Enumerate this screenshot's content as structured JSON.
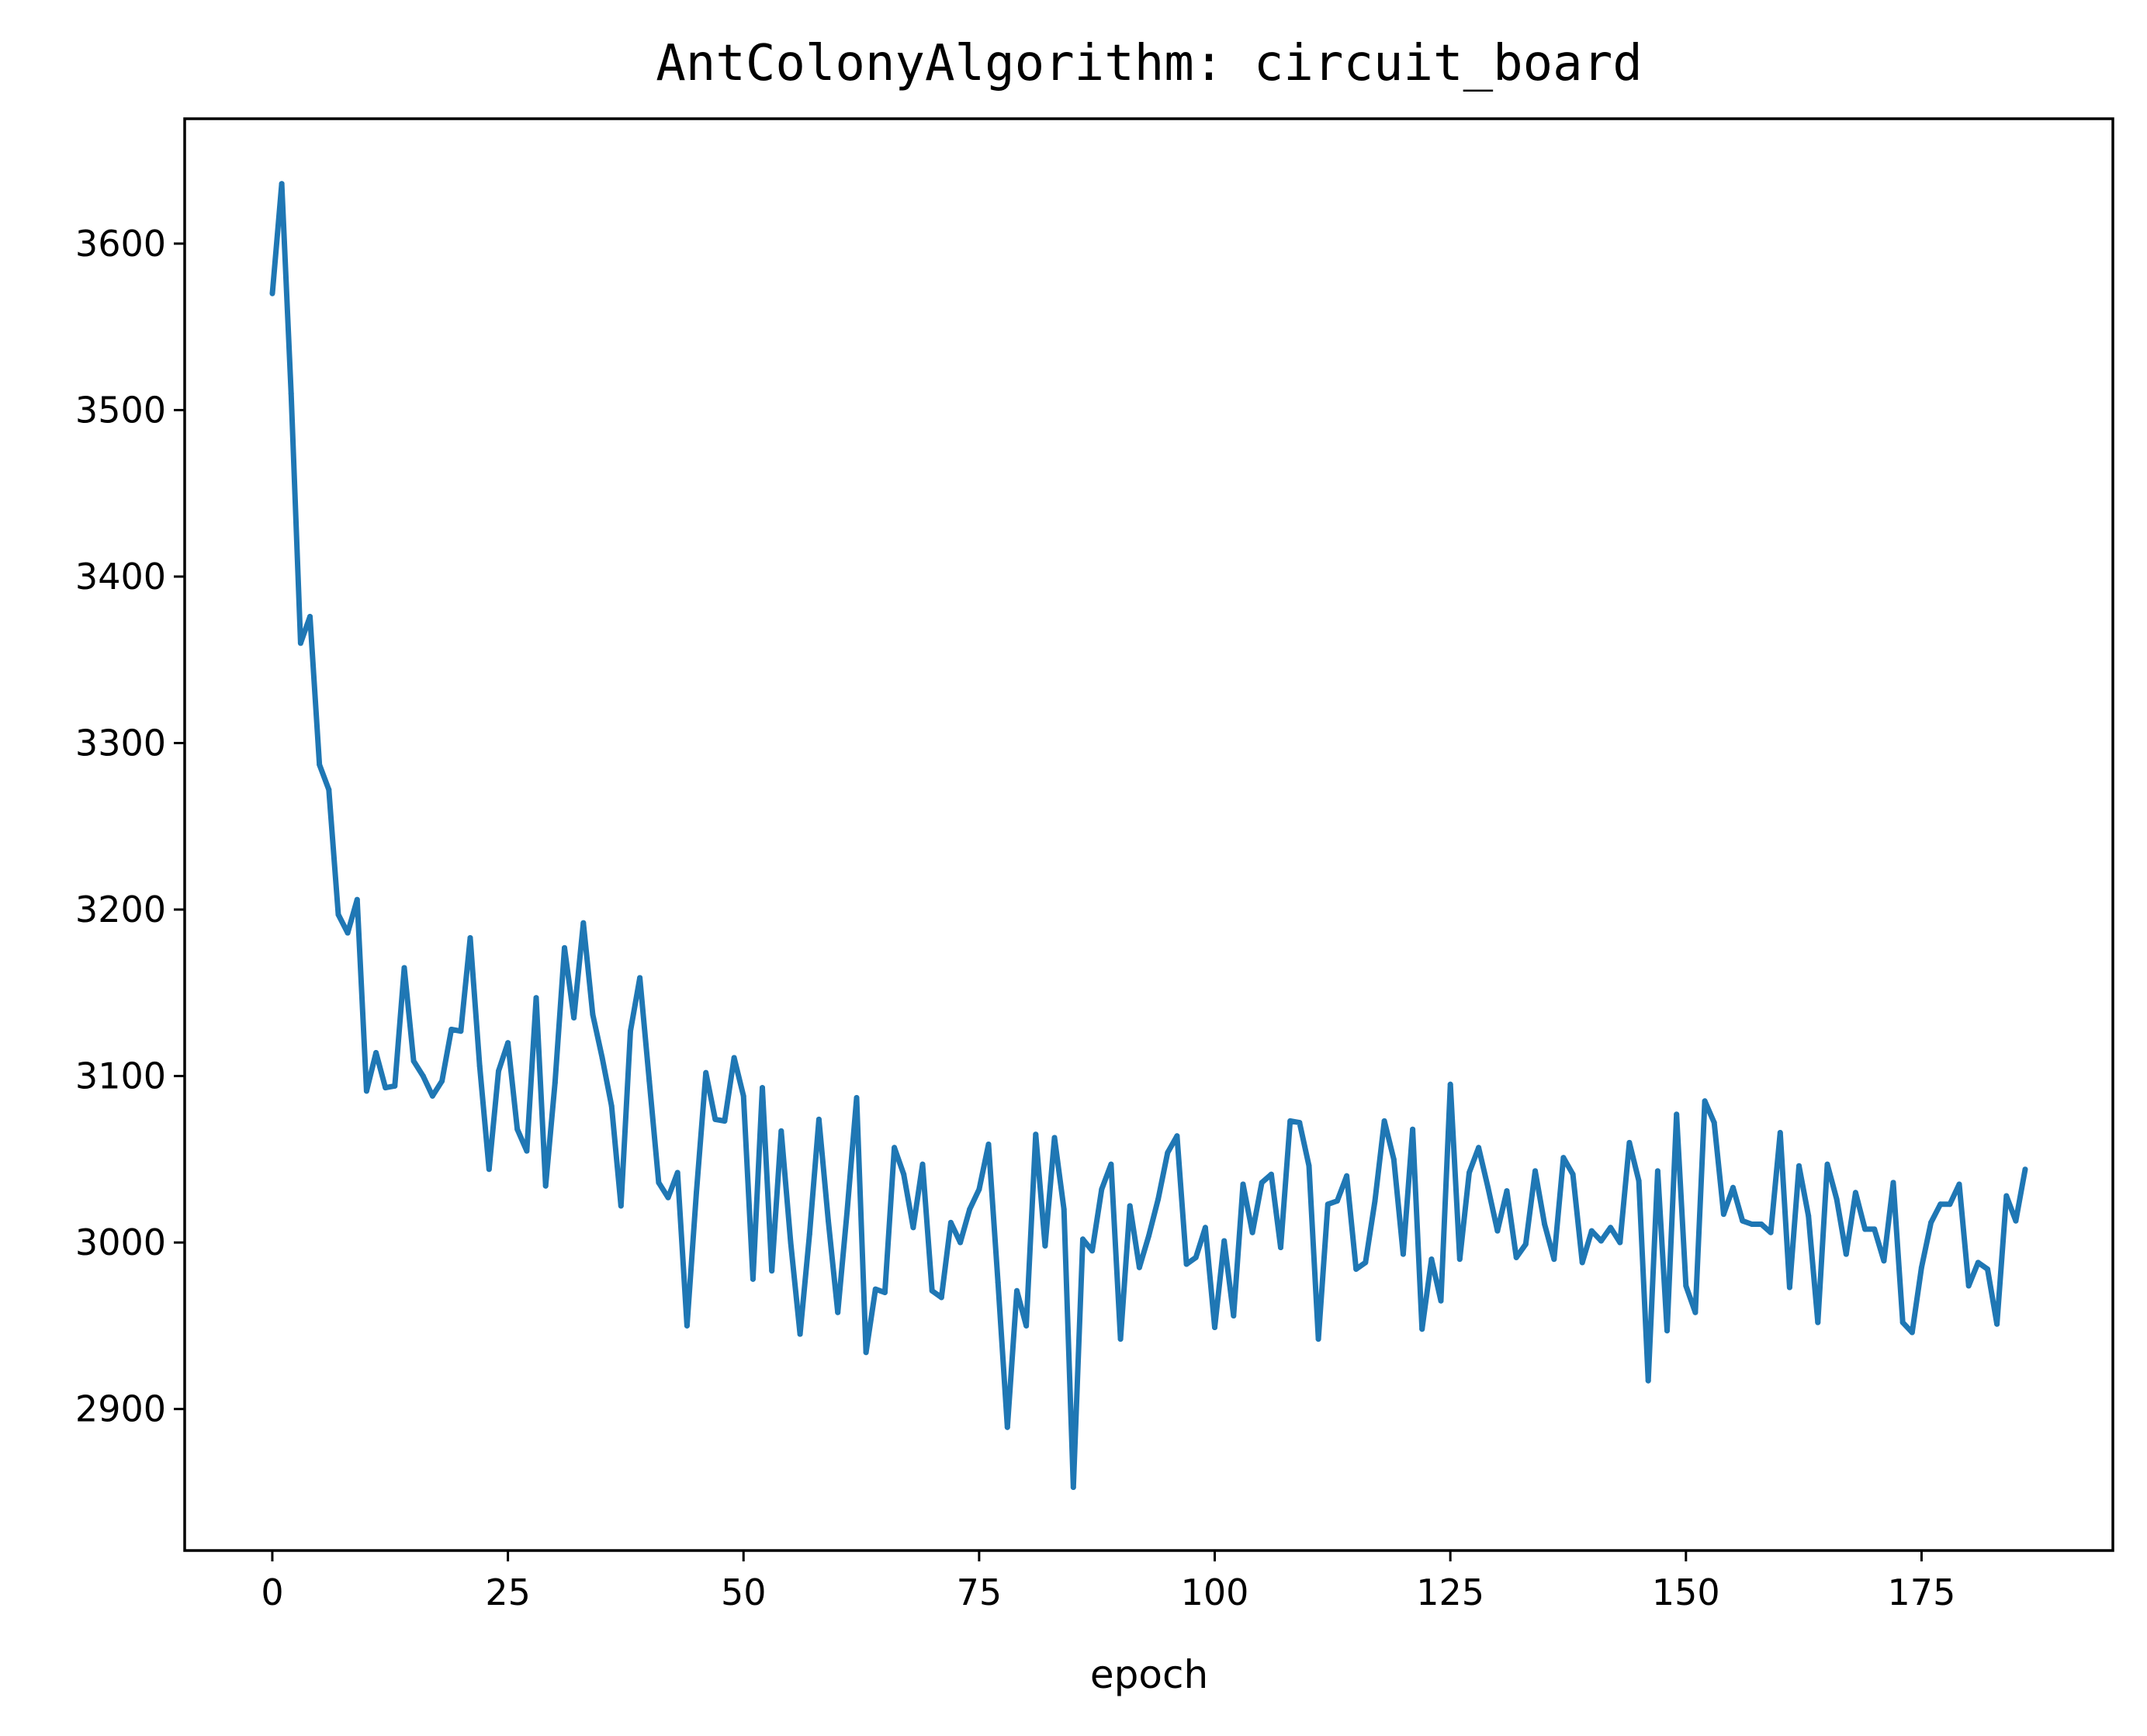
{
  "chart_data": {
    "type": "line",
    "title": "AntColonyAlgorithm: circuit_board",
    "xlabel": "epoch",
    "ylabel": "",
    "xlim": [
      -9.3,
      195.3
    ],
    "ylim": [
      2815,
      3675
    ],
    "grid": false,
    "line_color": "#1f77b4",
    "x_ticks": [
      0,
      25,
      50,
      75,
      100,
      125,
      150,
      175
    ],
    "y_ticks": [
      2900,
      3000,
      3100,
      3200,
      3300,
      3400,
      3500,
      3600
    ],
    "series": [
      {
        "name": "",
        "x": [
          0,
          1,
          2,
          3,
          4,
          5,
          6,
          7,
          8,
          9,
          10,
          11,
          12,
          13,
          14,
          15,
          16,
          17,
          18,
          19,
          20,
          21,
          22,
          23,
          24,
          25,
          26,
          27,
          28,
          29,
          30,
          31,
          32,
          33,
          34,
          35,
          36,
          37,
          38,
          39,
          40,
          41,
          42,
          43,
          44,
          45,
          46,
          47,
          48,
          49,
          50,
          51,
          52,
          53,
          54,
          55,
          56,
          57,
          58,
          59,
          60,
          61,
          62,
          63,
          64,
          65,
          66,
          67,
          68,
          69,
          70,
          71,
          72,
          73,
          74,
          75,
          76,
          77,
          78,
          79,
          80,
          81,
          82,
          83,
          84,
          85,
          86,
          87,
          88,
          89,
          90,
          91,
          92,
          93,
          94,
          95,
          96,
          97,
          98,
          99,
          100,
          101,
          102,
          103,
          104,
          105,
          106,
          107,
          108,
          109,
          110,
          111,
          112,
          113,
          114,
          115,
          116,
          117,
          118,
          119,
          120,
          121,
          122,
          123,
          124,
          125,
          126,
          127,
          128,
          129,
          130,
          131,
          132,
          133,
          134,
          135,
          136,
          137,
          138,
          139,
          140,
          141,
          142,
          143,
          144,
          145,
          146,
          147,
          148,
          149,
          150,
          151,
          152,
          153,
          154,
          155,
          156,
          157,
          158,
          159,
          160,
          161,
          162,
          163,
          164,
          165,
          166,
          167,
          168,
          169,
          170,
          171,
          172,
          173,
          174,
          175,
          176,
          177,
          178,
          179,
          180,
          181,
          182,
          183,
          184,
          185,
          186
        ],
        "y": [
          3570,
          3636,
          3510,
          3360,
          3376,
          3287,
          3272,
          3197,
          3186,
          3206,
          3091,
          3114,
          3093,
          3094,
          3165,
          3109,
          3100,
          3088,
          3097,
          3128,
          3127,
          3183,
          3106,
          3044,
          3103,
          3120,
          3068,
          3055,
          3147,
          3034,
          3096,
          3177,
          3135,
          3192,
          3137,
          3111,
          3082,
          3022,
          3127,
          3159,
          3097,
          3036,
          3027,
          3042,
          2950,
          3030,
          3102,
          3074,
          3073,
          3111,
          3088,
          2978,
          3093,
          2983,
          3067,
          3000,
          2945,
          3005,
          3074,
          3013,
          2958,
          3019,
          3087,
          2934,
          2972,
          2970,
          3057,
          3041,
          3009,
          3047,
          2971,
          2967,
          3012,
          3000,
          3020,
          3032,
          3059,
          2976,
          2889,
          2971,
          2950,
          3065,
          2998,
          3063,
          3020,
          2853,
          3002,
          2995,
          3032,
          3047,
          2942,
          3022,
          2985,
          3004,
          3026,
          3054,
          3064,
          2987,
          2991,
          3009,
          2949,
          3001,
          2956,
          3035,
          3006,
          3036,
          3041,
          2997,
          3073,
          3072,
          3046,
          2942,
          3023,
          3025,
          3040,
          2984,
          2988,
          3025,
          3073,
          3050,
          2993,
          3068,
          2948,
          2990,
          2965,
          3095,
          2990,
          3042,
          3057,
          3033,
          3007,
          3031,
          2991,
          2999,
          3043,
          3011,
          2990,
          3051,
          3041,
          2988,
          3007,
          3001,
          3009,
          3000,
          3060,
          3037,
          2917,
          3043,
          2947,
          3077,
          2974,
          2958,
          3085,
          3072,
          3017,
          3033,
          3013,
          3011,
          3011,
          3006,
          3066,
          2973,
          3046,
          3016,
          2952,
          3047,
          3026,
          2993,
          3030,
          3008,
          3008,
          2989,
          3036,
          2952,
          2946,
          2985,
          3012,
          3023,
          3023,
          3035,
          2974,
          2988,
          2984,
          2951,
          3028,
          3013,
          3044
        ]
      }
    ]
  }
}
